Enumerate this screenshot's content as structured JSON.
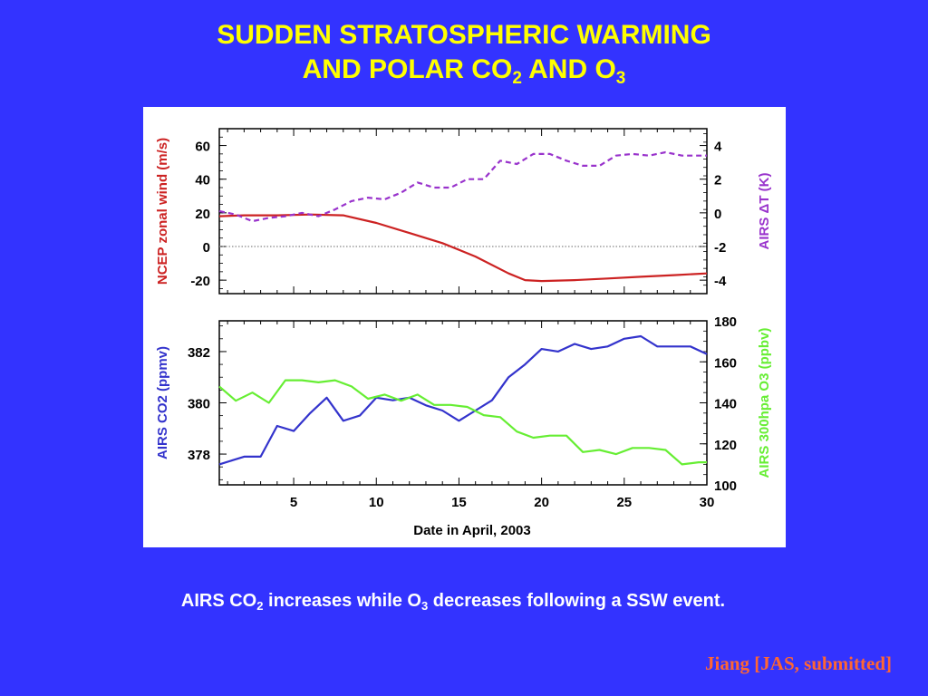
{
  "slide": {
    "title_line1": "SUDDEN STRATOSPHERIC WARMING",
    "title_line2_a": "AND POLAR CO",
    "title_line2_sub1": "2",
    "title_line2_b": " AND O",
    "title_line2_sub2": "3",
    "caption_a": "AIRS CO",
    "caption_sub1": "2",
    "caption_b": " increases while O",
    "caption_sub2": "3",
    "caption_c": " decreases following a SSW event.",
    "citation": "Jiang [JAS, submitted]"
  },
  "chart_data": [
    {
      "type": "line",
      "panel": "top",
      "xlim": [
        0.5,
        30
      ],
      "ylabel_left": "NCEP zonal wind  (m/s)",
      "ylabel_right": "AIRS ΔT  (K)",
      "ylim_left": [
        -28,
        70
      ],
      "yticks_left": [
        -20,
        0,
        20,
        40,
        60
      ],
      "ylim_right": [
        -4.8,
        5
      ],
      "yticks_right": [
        -4,
        -2,
        0,
        2,
        4
      ],
      "zero_reference_line": 0,
      "colors": {
        "wind": "#cc2222",
        "deltaT": "#9933cc",
        "zero_line": "#888888"
      },
      "series": [
        {
          "axis": "left",
          "style": "solid",
          "x": [
            0.5,
            2,
            4,
            6,
            8,
            10,
            12,
            14,
            16,
            18,
            19,
            20,
            22,
            24,
            26,
            28,
            30
          ],
          "values": [
            18,
            18.5,
            18.5,
            19,
            18.5,
            14,
            8,
            2,
            -6,
            -16,
            -20,
            -20.5,
            -20,
            -19,
            -18,
            -17,
            -16
          ]
        },
        {
          "axis": "right",
          "style": "dashed",
          "x": [
            0.5,
            1.5,
            2.5,
            3.5,
            4.5,
            5.5,
            6.5,
            7.5,
            8.5,
            9.5,
            10.5,
            11.5,
            12.5,
            13.5,
            14.5,
            15.5,
            16.5,
            17.5,
            18.5,
            19.5,
            20.5,
            21.5,
            22.5,
            23.5,
            24.5,
            25.5,
            26.5,
            27.5,
            28.5,
            29.5,
            30
          ],
          "values": [
            0.1,
            -0.1,
            -0.5,
            -0.3,
            -0.2,
            0,
            -0.2,
            0.2,
            0.7,
            0.9,
            0.8,
            1.2,
            1.8,
            1.5,
            1.5,
            2.0,
            2.0,
            3.1,
            2.9,
            3.5,
            3.5,
            3.1,
            2.8,
            2.8,
            3.4,
            3.5,
            3.4,
            3.6,
            3.4,
            3.4,
            3.4
          ]
        }
      ]
    },
    {
      "type": "line",
      "panel": "bottom",
      "xlim": [
        0.5,
        30
      ],
      "xticks": [
        5,
        10,
        15,
        20,
        25,
        30
      ],
      "xlabel": "Date in April, 2003",
      "ylabel_left": "AIRS CO2  (ppmv)",
      "ylabel_right": "AIRS 300hpa O3  (ppbv)",
      "ylim_left": [
        376.8,
        383.2
      ],
      "yticks_left": [
        378,
        380,
        382
      ],
      "ylim_right": [
        100,
        180
      ],
      "yticks_right": [
        100,
        120,
        140,
        160,
        180
      ],
      "colors": {
        "co2": "#3333cc",
        "o3": "#66ee33"
      },
      "series": [
        {
          "axis": "left",
          "x": [
            0.5,
            2,
            3,
            4,
            5,
            6,
            7,
            8,
            9,
            10,
            11,
            12,
            13,
            14,
            15,
            16,
            17,
            18,
            19,
            20,
            21,
            22,
            23,
            24,
            25,
            26,
            27,
            28,
            29,
            30
          ],
          "values": [
            377.6,
            377.9,
            377.9,
            379.1,
            378.9,
            379.6,
            380.2,
            379.3,
            379.5,
            380.2,
            380.1,
            380.2,
            379.9,
            379.7,
            379.3,
            379.7,
            380.1,
            381.0,
            381.5,
            382.1,
            382.0,
            382.3,
            382.1,
            382.2,
            382.5,
            382.6,
            382.2,
            382.2,
            382.2,
            381.9
          ]
        },
        {
          "axis": "right",
          "x": [
            0.5,
            1.5,
            2.5,
            3.5,
            4.5,
            5.5,
            6.5,
            7.5,
            8.5,
            9.5,
            10.5,
            11.5,
            12.5,
            13.5,
            14.5,
            15.5,
            16.5,
            17.5,
            18.5,
            19.5,
            20.5,
            21.5,
            22.5,
            23.5,
            24.5,
            25.5,
            26.5,
            27.5,
            28.5,
            29.5,
            30
          ],
          "values": [
            148,
            141,
            145,
            140,
            151,
            151,
            150,
            151,
            148,
            142,
            144,
            141,
            144,
            139,
            139,
            138,
            134,
            133,
            126,
            123,
            124,
            124,
            116,
            117,
            115,
            118,
            118,
            117,
            110,
            111,
            111
          ]
        }
      ]
    }
  ]
}
